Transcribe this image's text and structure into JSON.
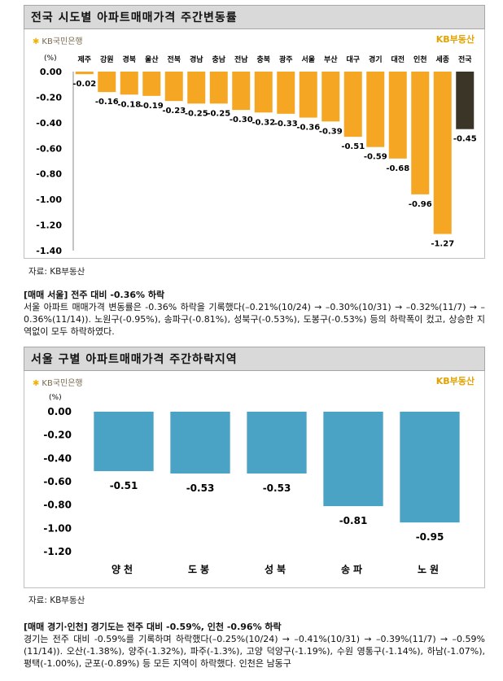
{
  "chart1": {
    "title": "전국 시도별 아파트매매가격 주간변동률",
    "logo_left": "KB국민은행",
    "logo_right": "KB부동산",
    "source": "자료: KB부동산",
    "chart_data": {
      "type": "bar",
      "unit": "(%)",
      "categories": [
        "제주",
        "강원",
        "경북",
        "울산",
        "전북",
        "경남",
        "충남",
        "전남",
        "충북",
        "광주",
        "서울",
        "부산",
        "대구",
        "경기",
        "대전",
        "인천",
        "세종",
        "전국"
      ],
      "values": [
        -0.02,
        -0.16,
        -0.18,
        -0.19,
        -0.23,
        -0.25,
        -0.25,
        -0.3,
        -0.32,
        -0.33,
        -0.36,
        -0.39,
        -0.51,
        -0.59,
        -0.68,
        -0.96,
        -1.27,
        -0.45
      ],
      "value_labels": [
        "-0.02",
        "-0.16",
        "-0.18",
        "-0.19",
        "-0.23",
        "-0.25",
        "-0.25",
        "-0.30",
        "-0.32",
        "-0.33",
        "-0.36",
        "-0.39",
        "-0.51",
        "-0.59",
        "-0.68",
        "-0.96",
        "-1.27",
        "-0.45"
      ],
      "ylim": [
        -1.4,
        0
      ],
      "yticks": [
        "0.00",
        "-0.20",
        "-0.40",
        "-0.60",
        "-0.80",
        "-1.00",
        "-1.20",
        "-1.40"
      ],
      "colors": {
        "bar": "#f5a623",
        "highlight": "#3b3528"
      }
    }
  },
  "para1": {
    "heading": "[매매 서울] 전주 대비 -0.36% 하락",
    "text": "서울 아파트 매매가격 변동률은 -0.36% 하락을 기록했다(–0.21%(10/24) → –0.30%(10/31) → –0.32%(11/7) → –0.36%(11/14)). 노원구(-0.95%), 송파구(-0.81%), 성북구(-0.53%), 도봉구(-0.53%) 등의 하락폭이 컸고, 상승한 지역없이 모두 하락하였다."
  },
  "chart2": {
    "title": "서울 구별 아파트매매가격 주간하락지역",
    "logo_left": "KB국민은행",
    "logo_right": "KB부동산",
    "source": "자료: KB부동산",
    "chart_data": {
      "type": "bar",
      "unit": "(%)",
      "categories": [
        "양천",
        "도봉",
        "성북",
        "송파",
        "노원"
      ],
      "values": [
        -0.51,
        -0.53,
        -0.53,
        -0.81,
        -0.95
      ],
      "value_labels": [
        "-0.51",
        "-0.53",
        "-0.53",
        "-0.81",
        "-0.95"
      ],
      "ylim": [
        -1.2,
        0
      ],
      "yticks": [
        "0.00",
        "-0.20",
        "-0.40",
        "-0.60",
        "-0.80",
        "-1.00",
        "-1.20"
      ],
      "colors": {
        "bar": "#4aa3c4"
      }
    }
  },
  "para2": {
    "heading": "[매매 경기·인천] 경기도는 전주 대비 -0.59%, 인천 -0.96% 하락",
    "text": "경기는 전주 대비 -0.59%를 기록하며 하락했다(–0.25%(10/24) → –0.41%(10/31) → –0.39%(11/7) → –0.59%(11/14)). 오산(-1.38%), 양주(-1.32%), 파주(-1.3%), 고양 덕양구(-1.19%), 수원 영통구(-1.14%), 하남(-1.07%), 평택(-1.00%), 군포(-0.89%) 등 모든 지역이 하락했다. 인천은 남동구"
  }
}
